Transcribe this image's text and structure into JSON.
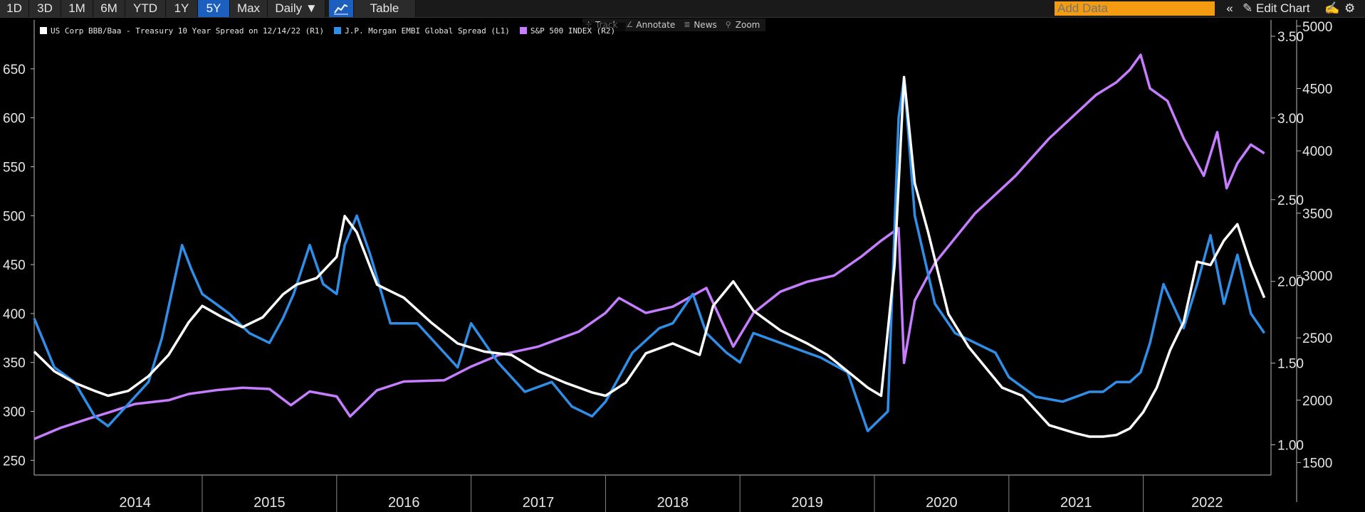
{
  "toolbar": {
    "periods": [
      "1D",
      "3D",
      "1M",
      "6M",
      "YTD",
      "1Y",
      "5Y",
      "Max"
    ],
    "active_period": "5Y",
    "frequency": "Daily ▼",
    "table_label": "Table",
    "add_data_placeholder": "Add Data",
    "collapse_glyph": "«",
    "edit_chart_label": "Edit Chart"
  },
  "chart_tools": [
    "Track",
    "Annotate",
    "News",
    "Zoom"
  ],
  "legend": [
    {
      "label": "US Corp BBB/Baa - Treasury 10 Year Spread  on 12/14/22 (R1)",
      "color": "#ffffff"
    },
    {
      "label": "J.P. Morgan EMBI Global Spread  (L1)",
      "color": "#2f8fe8"
    },
    {
      "label": "S&P 500 INDEX  (R2)",
      "color": "#c77dff"
    }
  ],
  "colors": {
    "background": "#000000",
    "embi": "#2f8fe8",
    "bbb": "#ffffff",
    "spx": "#c77dff",
    "toolbar_active": "#1c5fbf",
    "add_data_bg": "#f39c12"
  },
  "chart_data": {
    "type": "line",
    "x_categories": [
      "2014",
      "2015",
      "2016",
      "2017",
      "2018",
      "2019",
      "2020",
      "2021",
      "2022"
    ],
    "x_range": [
      2013.75,
      2022.95
    ],
    "axes": {
      "left": {
        "name": "L1",
        "range": [
          235,
          700
        ],
        "ticks": [
          250,
          300,
          350,
          400,
          450,
          500,
          550,
          600,
          650
        ]
      },
      "right1": {
        "name": "R1",
        "range": [
          0.815,
          3.6
        ],
        "ticks": [
          1.0,
          1.5,
          2.0,
          2.5,
          3.0,
          3.5
        ],
        "tick_labels": [
          "1.00",
          "1.50",
          "2.00",
          "2.50",
          "3.00",
          "3.50"
        ]
      },
      "right2": {
        "name": "R2",
        "range": [
          1400,
          5050
        ],
        "ticks": [
          1500,
          2000,
          2500,
          3000,
          3500,
          4000,
          4500,
          5000
        ]
      }
    },
    "series": [
      {
        "name": "J.P. Morgan EMBI Global Spread (L1)",
        "axis": "left",
        "color": "#2f8fe8",
        "x": [
          2013.75,
          2013.9,
          2014.05,
          2014.2,
          2014.3,
          2014.4,
          2014.6,
          2014.7,
          2014.85,
          2014.92,
          2015.0,
          2015.1,
          2015.2,
          2015.35,
          2015.5,
          2015.6,
          2015.68,
          2015.8,
          2015.9,
          2016.0,
          2016.06,
          2016.15,
          2016.25,
          2016.4,
          2016.6,
          2016.8,
          2016.9,
          2017.0,
          2017.2,
          2017.4,
          2017.6,
          2017.75,
          2017.9,
          2018.0,
          2018.2,
          2018.4,
          2018.5,
          2018.65,
          2018.75,
          2018.9,
          2019.0,
          2019.1,
          2019.3,
          2019.5,
          2019.6,
          2019.8,
          2019.95,
          2020.1,
          2020.18,
          2020.22,
          2020.3,
          2020.45,
          2020.6,
          2020.75,
          2020.9,
          2021.0,
          2021.2,
          2021.4,
          2021.6,
          2021.7,
          2021.8,
          2021.9,
          2021.98,
          2022.05,
          2022.15,
          2022.3,
          2022.4,
          2022.5,
          2022.6,
          2022.7,
          2022.8,
          2022.9
        ],
        "y": [
          395,
          345,
          330,
          295,
          285,
          300,
          330,
          375,
          470,
          445,
          420,
          410,
          400,
          380,
          370,
          395,
          420,
          470,
          430,
          420,
          470,
          500,
          460,
          390,
          390,
          360,
          345,
          390,
          350,
          320,
          330,
          305,
          295,
          310,
          360,
          385,
          390,
          420,
          380,
          360,
          350,
          380,
          370,
          360,
          355,
          340,
          280,
          300,
          600,
          640,
          500,
          410,
          380,
          370,
          360,
          335,
          315,
          310,
          320,
          320,
          330,
          330,
          340,
          370,
          430,
          385,
          430,
          480,
          410,
          460,
          400,
          380
        ]
      },
      {
        "name": "US Corp BBB/Baa - Treasury 10 Year Spread (R1)",
        "axis": "right1",
        "color": "#ffffff",
        "x": [
          2013.75,
          2013.9,
          2014.05,
          2014.2,
          2014.3,
          2014.45,
          2014.6,
          2014.75,
          2014.9,
          2015.0,
          2015.15,
          2015.3,
          2015.45,
          2015.6,
          2015.7,
          2015.85,
          2016.0,
          2016.06,
          2016.15,
          2016.3,
          2016.5,
          2016.7,
          2016.9,
          2017.1,
          2017.3,
          2017.5,
          2017.7,
          2017.9,
          2018.0,
          2018.15,
          2018.3,
          2018.5,
          2018.7,
          2018.8,
          2018.95,
          2019.1,
          2019.3,
          2019.5,
          2019.65,
          2019.8,
          2019.95,
          2020.05,
          2020.15,
          2020.22,
          2020.3,
          2020.4,
          2020.55,
          2020.7,
          2020.85,
          2020.95,
          2021.1,
          2021.3,
          2021.5,
          2021.6,
          2021.7,
          2021.8,
          2021.9,
          2022.0,
          2022.1,
          2022.2,
          2022.3,
          2022.4,
          2022.5,
          2022.6,
          2022.7,
          2022.8,
          2022.9
        ],
        "y": [
          1.57,
          1.45,
          1.38,
          1.33,
          1.3,
          1.33,
          1.42,
          1.55,
          1.75,
          1.85,
          1.78,
          1.72,
          1.78,
          1.92,
          1.98,
          2.02,
          2.15,
          2.4,
          2.3,
          1.98,
          1.9,
          1.75,
          1.62,
          1.57,
          1.55,
          1.45,
          1.38,
          1.32,
          1.3,
          1.38,
          1.56,
          1.62,
          1.55,
          1.85,
          2.0,
          1.82,
          1.7,
          1.62,
          1.55,
          1.45,
          1.35,
          1.3,
          2.1,
          3.25,
          2.6,
          2.3,
          1.8,
          1.6,
          1.45,
          1.35,
          1.3,
          1.12,
          1.07,
          1.05,
          1.05,
          1.06,
          1.1,
          1.2,
          1.35,
          1.58,
          1.75,
          2.12,
          2.1,
          2.25,
          2.35,
          2.1,
          1.9
        ]
      },
      {
        "name": "S&P 500 INDEX (R2)",
        "axis": "right2",
        "color": "#c77dff",
        "x": [
          2013.75,
          2013.95,
          2014.15,
          2014.3,
          2014.5,
          2014.75,
          2014.9,
          2015.1,
          2015.3,
          2015.5,
          2015.66,
          2015.8,
          2016.0,
          2016.1,
          2016.3,
          2016.5,
          2016.8,
          2017.0,
          2017.2,
          2017.5,
          2017.8,
          2018.0,
          2018.1,
          2018.3,
          2018.5,
          2018.75,
          2018.95,
          2019.1,
          2019.3,
          2019.5,
          2019.7,
          2019.9,
          2020.05,
          2020.18,
          2020.22,
          2020.3,
          2020.45,
          2020.6,
          2020.75,
          2020.9,
          2021.05,
          2021.3,
          2021.5,
          2021.65,
          2021.8,
          2021.9,
          2021.98,
          2022.05,
          2022.18,
          2022.3,
          2022.45,
          2022.55,
          2022.62,
          2022.7,
          2022.8,
          2022.9
        ],
        "y": [
          1690,
          1780,
          1850,
          1900,
          1970,
          2000,
          2050,
          2080,
          2100,
          2090,
          1960,
          2070,
          2030,
          1870,
          2080,
          2150,
          2160,
          2270,
          2360,
          2430,
          2550,
          2700,
          2820,
          2700,
          2750,
          2900,
          2430,
          2700,
          2870,
          2950,
          3000,
          3150,
          3280,
          3380,
          2300,
          2800,
          3100,
          3300,
          3500,
          3650,
          3800,
          4100,
          4300,
          4450,
          4550,
          4650,
          4770,
          4500,
          4400,
          4100,
          3800,
          4150,
          3700,
          3900,
          4050,
          3980
        ]
      }
    ]
  }
}
